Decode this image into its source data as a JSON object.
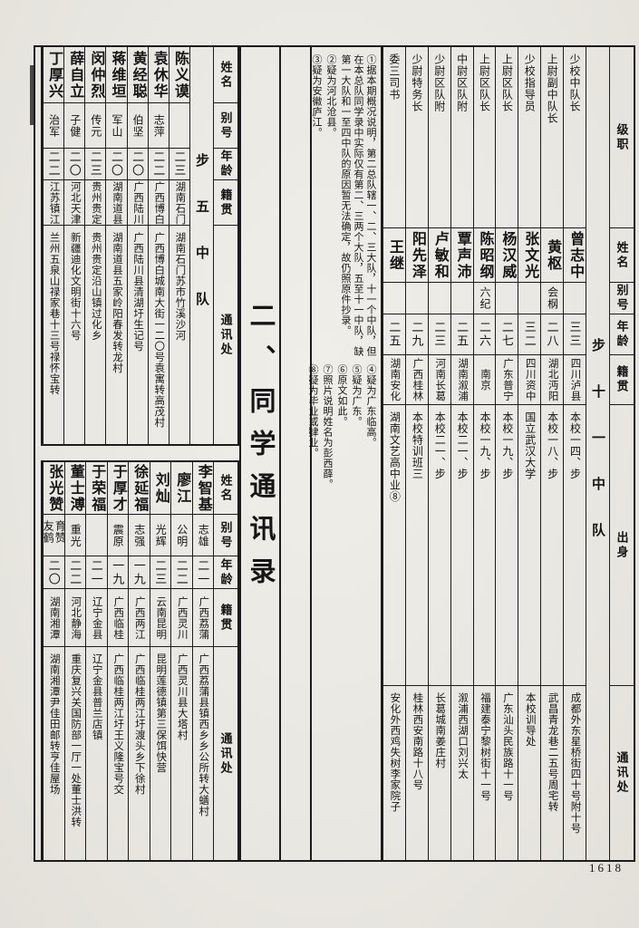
{
  "page": {
    "section_title": "二、同学通讯录",
    "page_number": "1618",
    "paper_color": "#e9e7e1",
    "ink_color": "#1c1c1c"
  },
  "footnotes": {
    "upper": [
      "①据本期概况说明，第二总队辖一、二、三大队，十一个中队，但在本总队同学录中实际仅有第二、三两个大队，五至十一中队，缺第一大队和一至四中队的原因暂无法确定，故仍照原件抄录。",
      "②疑为河北沧县。",
      "③疑为安徽庐江。"
    ],
    "lower": [
      "④疑为广东临高。",
      "⑤疑为广东。",
      "⑥原文如此。",
      "⑦照片说明姓名为彭西薛。",
      "⑧疑为毕业或肄业。"
    ]
  },
  "right_table": {
    "unit_label": "步十一中队",
    "headers": [
      "级职",
      "姓名",
      "别号",
      "年龄",
      "籍贯",
      "出身",
      "通讯处"
    ],
    "rows": [
      {
        "rank": "少校中队长",
        "name": "曾志中",
        "alias": "",
        "age": "三三",
        "native": "四川泸县",
        "origin": "本校一四、步",
        "address": "成都外东星桥街四十号附十号"
      },
      {
        "rank": "上尉副中队长",
        "name": "黄枢",
        "alias": "会㭎",
        "age": "二八",
        "native": "湖北沔阳",
        "origin": "本校一八、步",
        "address": "武昌青龙巷二五号周宅转"
      },
      {
        "rank": "少校指导员",
        "name": "张文光",
        "alias": "",
        "age": "三二",
        "native": "四川资中",
        "origin": "国立武汉大学",
        "address": "本校训导处"
      },
      {
        "rank": "上尉区队长",
        "name": "杨汉威",
        "alias": "",
        "age": "二七",
        "native": "广东普宁",
        "origin": "本校一九、步",
        "address": "广东汕头民族路十一号"
      },
      {
        "rank": "上尉区队长",
        "name": "陈昭纲",
        "alias": "六纪",
        "age": "二六",
        "native": "南京",
        "origin": "本校一九、步",
        "address": "福建泰宁黎树街十一号"
      },
      {
        "rank": "中尉区队附",
        "name": "覃声沛",
        "alias": "",
        "age": "二五",
        "native": "湖南溆浦",
        "origin": "本校二一、步",
        "address": "溆浦西湖口刘兴太"
      },
      {
        "rank": "少尉区队附",
        "name": "卢敏和",
        "alias": "",
        "age": "二三",
        "native": "河南长葛",
        "origin": "本校二一、步",
        "address": "长葛城南姜庄村"
      },
      {
        "rank": "少尉特务长",
        "name": "阳先泽",
        "alias": "",
        "age": "二九",
        "native": "广西桂林",
        "origin": "本校特训班三",
        "address": "桂林西安南路十八号"
      },
      {
        "rank": "委三司书",
        "name": "王继",
        "alias": "",
        "age": "二五",
        "native": "湖南安化",
        "origin": "湖南文艺高中业⑧",
        "address": "安化外西鸡失树李家院子"
      }
    ]
  },
  "left_top_table": {
    "unit_label": "步五中队",
    "headers": [
      "姓名",
      "别号",
      "年龄",
      "籍贯",
      "通讯处"
    ],
    "rows": [
      {
        "name": "陈义谟",
        "alias": "",
        "age": "二三",
        "native": "湖南石门",
        "address": "湖南石门苏市竹溪沙河"
      },
      {
        "name": "袁休华",
        "alias": "志萍",
        "age": "二二",
        "native": "广西博白",
        "address": "广西博白城南大街一二〇号袁寓转高茂村"
      },
      {
        "name": "黄经聪",
        "alias": "伯坚",
        "age": "二〇",
        "native": "广西陆川",
        "address": "广西陆川县清湖圩生记号"
      },
      {
        "name": "蒋维垣",
        "alias": "军山",
        "age": "二〇",
        "native": "湖南道县",
        "address": "湖南道县五家岭阳春发转龙村"
      },
      {
        "name": "闵仲烈",
        "alias": "传元",
        "age": "二三",
        "native": "贵州贵定",
        "address": "贵州贵定沿山镇过化乡"
      },
      {
        "name": "薛自立",
        "alias": "子健",
        "age": "二〇",
        "native": "河北天津",
        "address": "新疆迪化文明街十六号"
      },
      {
        "name": "丁厚兴",
        "alias": "治军",
        "age": "二二",
        "native": "江苏镇江",
        "address": "兰州五泉山禄家巷十三号禄怀宝转"
      }
    ]
  },
  "left_bottom_table": {
    "headers": [
      "姓名",
      "别号",
      "年龄",
      "籍贯",
      "通讯处"
    ],
    "rows": [
      {
        "name": "李智基",
        "alias": "志雄",
        "age": "二一",
        "native": "广西荔蒲",
        "address": "广西荔蒲县镇西乡乡公所转大蟮村"
      },
      {
        "name": "廖江",
        "alias": "公明",
        "age": "二二",
        "native": "广西灵川",
        "address": "广西灵川县大塔村"
      },
      {
        "name": "刘灿",
        "alias": "光辉",
        "age": "二三",
        "native": "云南昆明",
        "address": "昆明莲德镇第三保饵快营"
      },
      {
        "name": "徐延福",
        "alias": "志强",
        "age": "一九",
        "native": "广西两江",
        "address": "广西临桂两江圩渡头乡下徐村"
      },
      {
        "name": "于厚才",
        "alias": "震原",
        "age": "一九",
        "native": "广西临桂",
        "address": "广西临桂两江圩王义隆宝号交"
      },
      {
        "name": "于荣福",
        "alias": "",
        "age": "二一",
        "native": "辽宁金县",
        "address": "辽宁金县普兰店镇"
      },
      {
        "name": "董士溥",
        "alias": "重光",
        "age": "二二",
        "native": "河北静海",
        "address": "重庆复兴关国防部一厅一处董士洪转"
      },
      {
        "name": "张光赞",
        "alias": "育赞友鹤",
        "age": "二〇",
        "native": "湖南湘潭",
        "address": "湖南湘潭尹佳田邮转亨佳屋场"
      }
    ]
  }
}
